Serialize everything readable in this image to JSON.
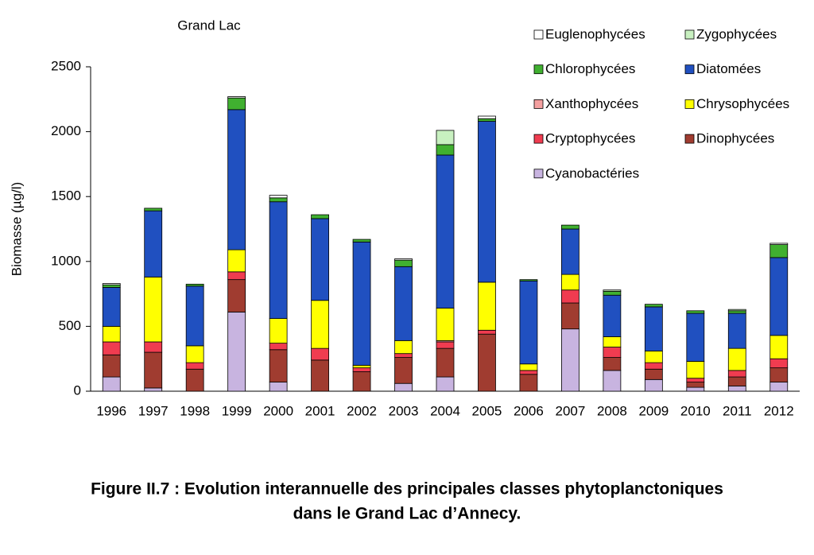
{
  "chart_data": {
    "type": "stacked-bar",
    "title": "Grand Lac",
    "y_label": "Biomasse (µg/l)",
    "categories": [
      "1996",
      "1997",
      "1998",
      "1999",
      "2000",
      "2001",
      "2002",
      "2003",
      "2004",
      "2005",
      "2006",
      "2007",
      "2008",
      "2009",
      "2010",
      "2011",
      "2012"
    ],
    "series": [
      {
        "name": "Cyanobactéries",
        "color": "#c8b4e0",
        "values": [
          110,
          25,
          0,
          610,
          70,
          0,
          0,
          60,
          110,
          0,
          0,
          480,
          160,
          90,
          30,
          40,
          70
        ]
      },
      {
        "name": "Dinophycées",
        "color": "#a03c30",
        "values": [
          170,
          275,
          170,
          250,
          250,
          240,
          150,
          200,
          220,
          440,
          130,
          200,
          100,
          80,
          40,
          70,
          110
        ]
      },
      {
        "name": "Cryptophycées",
        "color": "#f03c50",
        "values": [
          100,
          80,
          50,
          60,
          50,
          90,
          30,
          30,
          50,
          30,
          30,
          100,
          80,
          50,
          30,
          50,
          70
        ]
      },
      {
        "name": "Xanthophycées",
        "color": "#f4a0a0",
        "values": [
          0,
          0,
          0,
          0,
          0,
          0,
          0,
          0,
          10,
          0,
          0,
          0,
          0,
          0,
          0,
          0,
          0
        ]
      },
      {
        "name": "Chrysophycées",
        "color": "#ffff00",
        "values": [
          120,
          500,
          130,
          170,
          190,
          370,
          20,
          100,
          250,
          370,
          50,
          120,
          80,
          90,
          130,
          170,
          180
        ]
      },
      {
        "name": "Diatomées",
        "color": "#2050c0",
        "values": [
          300,
          510,
          460,
          1080,
          900,
          630,
          950,
          570,
          1180,
          1240,
          640,
          350,
          320,
          340,
          370,
          270,
          600
        ]
      },
      {
        "name": "Chlorophycées",
        "color": "#40b030",
        "values": [
          20,
          20,
          15,
          90,
          30,
          30,
          20,
          50,
          80,
          20,
          10,
          30,
          30,
          20,
          20,
          20,
          100
        ]
      },
      {
        "name": "Zygophycées",
        "color": "#c8f0c0",
        "values": [
          0,
          0,
          0,
          0,
          0,
          0,
          0,
          0,
          110,
          0,
          0,
          0,
          10,
          0,
          0,
          10,
          0
        ]
      },
      {
        "name": "Euglenophycées",
        "color": "#ffffff",
        "values": [
          10,
          0,
          0,
          10,
          20,
          0,
          0,
          10,
          0,
          20,
          0,
          0,
          0,
          0,
          0,
          0,
          10
        ]
      }
    ],
    "ylim": [
      0,
      2500
    ],
    "yticks": [
      0,
      500,
      1000,
      1500,
      2000,
      2500
    ],
    "grid": false,
    "caption": [
      "Figure II.7 : Evolution interannuelle des principales classes phytoplanctoniques",
      "dans le Grand Lac d’Annecy."
    ]
  }
}
